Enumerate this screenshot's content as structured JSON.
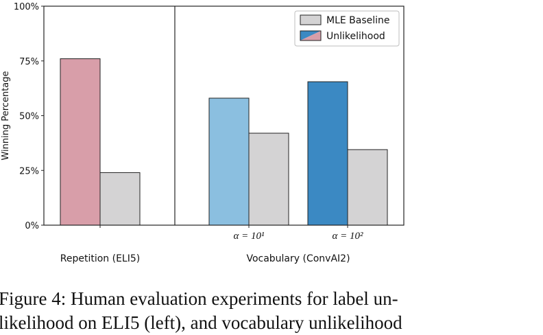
{
  "chart_data": {
    "type": "bar",
    "ylabel": "Winning Percentage",
    "ylim": [
      0,
      100
    ],
    "y_ticks": [
      "0%",
      "25%",
      "50%",
      "75%",
      "100%"
    ],
    "grid": false,
    "legend_position": "top-right",
    "legend": [
      {
        "label": "MLE Baseline",
        "color": "#d4d3d4"
      },
      {
        "label": "Unlikelihood",
        "color": "split pink/blue"
      }
    ],
    "panels": [
      {
        "label": "Repetition (ELI5)",
        "groups": [
          {
            "tick": "",
            "bars": [
              {
                "series": "Unlikelihood",
                "value": 76,
                "color": "#d89ea9"
              },
              {
                "series": "MLE Baseline",
                "value": 24,
                "color": "#d4d3d4"
              }
            ]
          }
        ]
      },
      {
        "label": "Vocabulary (ConvAI2)",
        "groups": [
          {
            "tick": "α = 10¹",
            "bars": [
              {
                "series": "Unlikelihood",
                "value": 58,
                "color": "#8bbfe0"
              },
              {
                "series": "MLE Baseline",
                "value": 42,
                "color": "#d4d3d4"
              }
            ]
          },
          {
            "tick": "α = 10²",
            "bars": [
              {
                "series": "Unlikelihood",
                "value": 65.5,
                "color": "#3b89c3"
              },
              {
                "series": "MLE Baseline",
                "value": 34.5,
                "color": "#d4d3d4"
              }
            ]
          }
        ]
      }
    ]
  },
  "caption": {
    "line1": "Figure 4: Human evaluation experiments for label un-",
    "line2": "likelihood on ELI5 (left), and vocabulary unlikelihood"
  }
}
